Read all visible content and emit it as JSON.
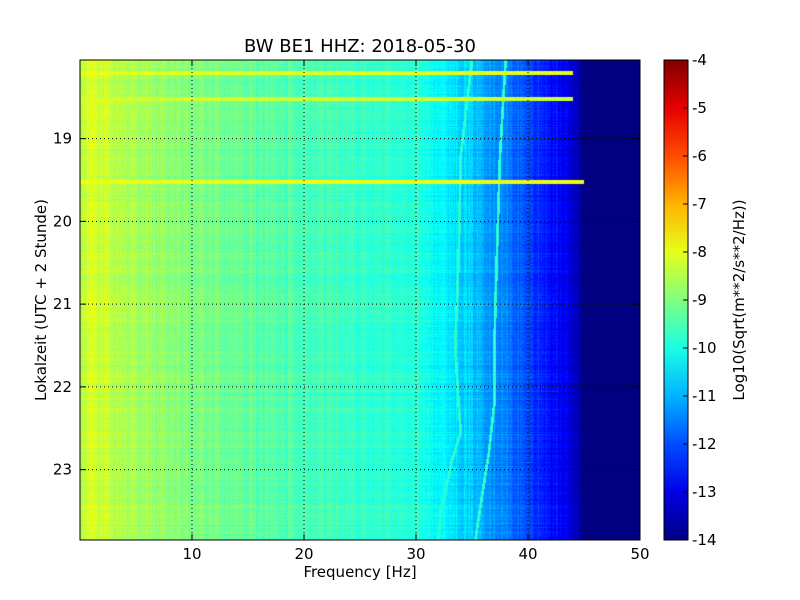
{
  "chart_data": {
    "type": "heatmap",
    "title": "BW BE1 HHZ: 2018-05-30",
    "xlabel": "Frequency [Hz]",
    "ylabel": "Lokalzeit (UTC + 2 Stunde)",
    "xlim": [
      0,
      50
    ],
    "ylim": [
      18.05,
      23.85
    ],
    "y_inverted": true,
    "x_ticks": [
      "10",
      "20",
      "30",
      "40",
      "50"
    ],
    "y_ticks": [
      "19",
      "20",
      "21",
      "22",
      "23"
    ],
    "grid": true,
    "colormap": "jet",
    "colorbar": {
      "label": "Log10(Sqrt(m**2/s**2/Hz))",
      "range": [
        -14,
        -4
      ],
      "ticks": [
        "-4",
        "-5",
        "-6",
        "-7",
        "-8",
        "-9",
        "-10",
        "-11",
        "-12",
        "-13",
        "-14"
      ]
    },
    "psd_profile": {
      "frequencies": [
        0,
        0.5,
        1,
        2,
        3,
        4,
        6,
        8,
        10,
        12,
        15,
        18,
        20,
        25,
        30,
        32,
        34,
        36,
        38,
        40,
        42,
        43.5,
        44.5,
        45,
        50
      ],
      "log10_amplitude": [
        -8.6,
        -8.3,
        -8.0,
        -8.3,
        -8.5,
        -8.5,
        -8.7,
        -8.9,
        -9.0,
        -9.1,
        -9.3,
        -9.4,
        -9.5,
        -9.7,
        -9.9,
        -10.2,
        -10.6,
        -11.0,
        -11.5,
        -12.1,
        -12.6,
        -13.0,
        -13.6,
        -14.0,
        -14.0
      ]
    },
    "horizontal_bands": [
      {
        "time": 18.21,
        "fmax": 44,
        "log10_amplitude": -8.0
      },
      {
        "time": 18.52,
        "fmax": 44,
        "log10_amplitude": -8.2
      },
      {
        "time": 19.52,
        "fmax": 45,
        "log10_amplitude": -7.9
      }
    ],
    "tonal_lines": [
      {
        "points": [
          [
            35.0,
            18.05
          ],
          [
            34.0,
            19.2
          ],
          [
            33.8,
            20.5
          ],
          [
            33.5,
            21.5
          ],
          [
            33.8,
            22.2
          ],
          [
            34.0,
            22.55
          ],
          [
            33.2,
            22.9
          ],
          [
            32.2,
            23.5
          ],
          [
            32.0,
            23.85
          ]
        ]
      },
      {
        "points": [
          [
            38.0,
            18.05
          ],
          [
            37.5,
            19.2
          ],
          [
            37.2,
            20.5
          ],
          [
            37.0,
            21.5
          ],
          [
            37.0,
            22.2
          ],
          [
            36.5,
            22.8
          ],
          [
            35.8,
            23.4
          ],
          [
            35.3,
            23.85
          ]
        ]
      }
    ]
  }
}
